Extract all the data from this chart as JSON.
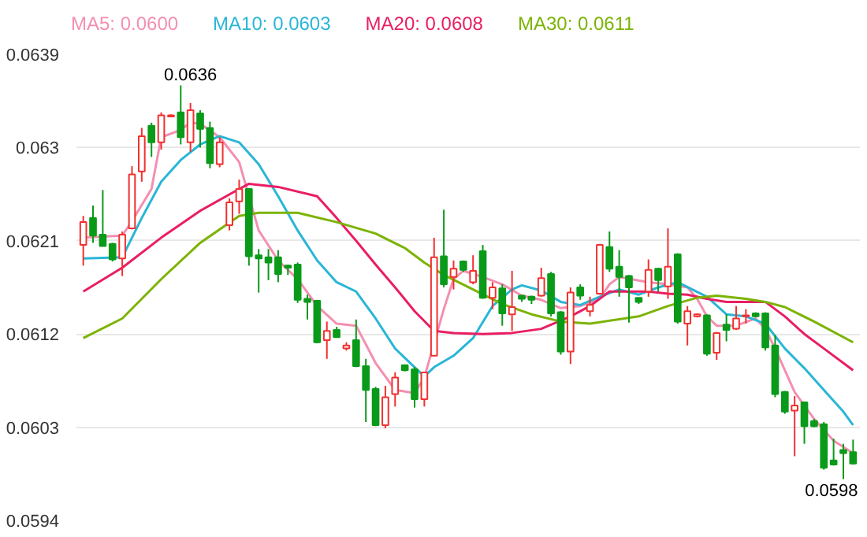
{
  "chart_data": {
    "type": "candlestick",
    "categories": [
      null,
      null,
      null,
      null,
      null,
      null,
      null,
      null,
      null,
      null,
      null,
      null,
      null,
      null,
      null,
      null,
      null,
      null,
      null,
      null,
      null,
      null,
      null,
      null,
      null,
      null,
      null,
      null,
      null,
      null,
      null,
      null,
      null,
      null,
      null,
      null,
      null,
      null,
      null,
      null,
      null,
      null,
      null,
      null,
      null,
      null,
      null,
      null,
      null,
      null,
      null,
      null,
      null,
      null,
      null,
      null,
      null,
      null,
      null,
      null,
      null,
      null,
      null,
      null,
      null,
      null,
      null,
      null,
      null,
      null,
      null,
      null,
      null,
      null,
      null,
      null,
      null,
      null,
      null,
      null
    ],
    "ohlc": [
      [
        0.06206,
        0.06234,
        0.06186,
        0.06228
      ],
      [
        0.06232,
        0.06244,
        0.06208,
        0.06215
      ],
      [
        0.06216,
        0.06259,
        0.06205,
        0.06205
      ],
      [
        0.06207,
        0.06208,
        0.0619,
        0.06192
      ],
      [
        0.06193,
        0.06219,
        0.06176,
        0.06216
      ],
      [
        0.06222,
        0.06282,
        0.06221,
        0.06274
      ],
      [
        0.06277,
        0.06319,
        0.06267,
        0.06311
      ],
      [
        0.06321,
        0.06324,
        0.06291,
        0.06305
      ],
      [
        0.06305,
        0.06334,
        0.06298,
        0.06331
      ],
      [
        0.0633,
        0.06332,
        0.0633,
        0.06331
      ],
      [
        0.06334,
        0.0636,
        0.06303,
        0.0631
      ],
      [
        0.06305,
        0.06343,
        0.06296,
        0.06336
      ],
      [
        0.06333,
        0.06336,
        0.063,
        0.06318
      ],
      [
        0.06319,
        0.06325,
        0.0628,
        0.06285
      ],
      [
        0.06284,
        0.0631,
        0.06281,
        0.06305
      ],
      [
        0.06225,
        0.06251,
        0.0622,
        0.06247
      ],
      [
        0.06248,
        0.06269,
        0.06236,
        0.0626
      ],
      [
        0.0626,
        0.0626,
        0.06186,
        0.06195
      ],
      [
        0.06196,
        0.06202,
        0.0616,
        0.06193
      ],
      [
        0.06194,
        0.06202,
        0.06172,
        0.06189
      ],
      [
        0.06194,
        0.06201,
        0.0617,
        0.06178
      ],
      [
        0.06186,
        0.06187,
        0.06177,
        0.06184
      ],
      [
        0.06187,
        0.06189,
        0.0615,
        0.06153
      ],
      [
        0.06154,
        0.06158,
        0.06134,
        0.06151
      ],
      [
        0.06152,
        0.06153,
        0.06111,
        0.06112
      ],
      [
        0.06114,
        0.06132,
        0.06096,
        0.06123
      ],
      [
        0.06124,
        0.06127,
        0.06117,
        0.06117
      ],
      [
        0.06106,
        0.06112,
        0.06104,
        0.06109
      ],
      [
        0.06114,
        0.06134,
        0.06088,
        0.06089
      ],
      [
        0.06089,
        0.06096,
        0.06035,
        0.06066
      ],
      [
        0.06067,
        0.06069,
        0.06031,
        0.06032
      ],
      [
        0.06032,
        0.0607,
        0.06029,
        0.06059
      ],
      [
        0.06062,
        0.06083,
        0.0605,
        0.06078
      ],
      [
        0.0609,
        0.0609,
        0.06084,
        0.06085
      ],
      [
        0.06086,
        0.06088,
        0.06049,
        0.06057
      ],
      [
        0.06057,
        0.06083,
        0.0605,
        0.06083
      ],
      [
        0.06099,
        0.06213,
        0.06099,
        0.06194
      ],
      [
        0.06195,
        0.0624,
        0.06165,
        0.06168
      ],
      [
        0.06175,
        0.06191,
        0.06163,
        0.06183
      ],
      [
        0.0619,
        0.06191,
        0.0618,
        0.06182
      ],
      [
        0.0617,
        0.06196,
        0.06168,
        0.06181
      ],
      [
        0.062,
        0.06206,
        0.06154,
        0.06155
      ],
      [
        0.06155,
        0.0617,
        0.06144,
        0.06165
      ],
      [
        0.06164,
        0.06168,
        0.06128,
        0.0614
      ],
      [
        0.06139,
        0.06181,
        0.06123,
        0.06146
      ],
      [
        0.06157,
        0.06158,
        0.06151,
        0.06154
      ],
      [
        0.06156,
        0.06157,
        0.06149,
        0.06153
      ],
      [
        0.06157,
        0.06184,
        0.06156,
        0.06174
      ],
      [
        0.06178,
        0.0618,
        0.06137,
        0.0614
      ],
      [
        0.06141,
        0.06142,
        0.061,
        0.06103
      ],
      [
        0.06103,
        0.06165,
        0.06091,
        0.0616
      ],
      [
        0.06165,
        0.06168,
        0.06153,
        0.06157
      ],
      [
        0.06142,
        0.06156,
        0.06137,
        0.06148
      ],
      [
        0.06159,
        0.06207,
        0.06158,
        0.06206
      ],
      [
        0.06204,
        0.06219,
        0.0618,
        0.06183
      ],
      [
        0.06185,
        0.06201,
        0.06156,
        0.06175
      ],
      [
        0.06176,
        0.06177,
        0.06131,
        0.06165
      ],
      [
        0.06155,
        0.06155,
        0.06149,
        0.06151
      ],
      [
        0.06161,
        0.06192,
        0.06156,
        0.06182
      ],
      [
        0.06183,
        0.06184,
        0.06161,
        0.06172
      ],
      [
        0.06166,
        0.06222,
        0.06154,
        0.06185
      ],
      [
        0.06197,
        0.06198,
        0.0613,
        0.06132
      ],
      [
        0.0613,
        0.06147,
        0.06109,
        0.06142
      ],
      [
        0.06137,
        0.0614,
        0.06136,
        0.06139
      ],
      [
        0.06138,
        0.06139,
        0.06099,
        0.06101
      ],
      [
        0.06102,
        0.06122,
        0.06095,
        0.06121
      ],
      [
        0.06129,
        0.06139,
        0.06113,
        0.06124
      ],
      [
        0.06125,
        0.06147,
        0.06124,
        0.06135
      ],
      [
        0.06137,
        0.06144,
        0.0613,
        0.06138
      ],
      [
        0.0614,
        0.06141,
        0.06136,
        0.06137
      ],
      [
        0.0614,
        0.06141,
        0.06104,
        0.06107
      ],
      [
        0.06109,
        0.06119,
        0.06059,
        0.06062
      ],
      [
        0.06064,
        0.06065,
        0.06043,
        0.06045
      ],
      [
        0.06046,
        0.0606,
        0.06002,
        0.06051
      ],
      [
        0.06054,
        0.06055,
        0.06014,
        0.06031
      ],
      [
        0.06036,
        0.06038,
        0.0603,
        0.06031
      ],
      [
        0.06033,
        0.06035,
        0.05989,
        0.05991
      ],
      [
        0.05998,
        0.06019,
        0.05993,
        0.05994
      ],
      [
        0.06008,
        0.06014,
        0.0598,
        0.06005
      ],
      [
        0.06006,
        0.06018,
        0.05994,
        0.05995
      ]
    ],
    "series": [
      {
        "name": "MA5: 0.0600",
        "type": "line",
        "color": "#f48fb1",
        "values": [
          0.06213,
          null,
          null,
          null,
          0.06215,
          0.06229,
          null,
          0.0626,
          0.0631,
          null,
          0.06317,
          0.06324,
          0.06323,
          null,
          0.0631,
          null,
          0.06286,
          null,
          0.0622,
          null,
          0.06191,
          null,
          0.06173,
          null,
          0.06147,
          null,
          0.0613,
          null,
          0.06128,
          null,
          0.06092,
          null,
          0.06066,
          null,
          0.06063,
          0.06078,
          0.06111,
          0.06144,
          0.06173,
          0.06181,
          null,
          0.06175,
          null,
          0.06168,
          null,
          0.06157,
          null,
          0.06153,
          null,
          0.06145,
          null,
          0.06147,
          null,
          0.06154,
          0.06168,
          0.06175,
          null,
          null,
          0.0617,
          null,
          0.06168,
          null,
          0.06165,
          0.06154,
          0.06137,
          0.06128,
          null,
          0.06128,
          null,
          0.06135,
          0.06125,
          0.06106,
          null,
          0.06064,
          null,
          0.06038,
          null,
          0.06017,
          null,
          0.06005
        ]
      },
      {
        "name": "MA10: 0.0603",
        "type": "line",
        "color": "#29b6d6",
        "values": [
          0.06193,
          null,
          null,
          null,
          0.06194,
          null,
          0.06232,
          null,
          0.06267,
          null,
          0.06288,
          null,
          0.06303,
          null,
          0.06311,
          null,
          0.06305,
          null,
          0.06284,
          null,
          0.06253,
          null,
          0.0622,
          null,
          0.06191,
          null,
          0.0617,
          null,
          0.06161,
          null,
          0.06135,
          null,
          0.06106,
          null,
          0.06088,
          0.06079,
          0.06088,
          null,
          0.06099,
          null,
          0.06116,
          null,
          0.06147,
          null,
          0.06163,
          0.06167,
          null,
          0.06162,
          null,
          0.06151,
          null,
          0.06148,
          null,
          0.06156,
          null,
          0.06163,
          null,
          0.06158,
          null,
          0.06165,
          null,
          0.0617,
          null,
          null,
          0.06156,
          null,
          0.06139,
          null,
          0.06137,
          null,
          0.0613,
          null,
          0.06106,
          null,
          0.06087,
          null,
          0.06066,
          null,
          0.06045,
          0.06032
        ]
      },
      {
        "name": "MA20: 0.0608",
        "type": "line",
        "color": "#e91e63",
        "values": [
          0.06161,
          null,
          null,
          null,
          0.06184,
          null,
          null,
          null,
          0.06213,
          null,
          null,
          null,
          0.06239,
          null,
          null,
          null,
          0.0626,
          0.06265,
          null,
          null,
          0.06262,
          null,
          null,
          null,
          0.06253,
          null,
          0.06232,
          null,
          0.0621,
          null,
          0.06187,
          null,
          0.06165,
          null,
          0.06142,
          null,
          0.06123,
          null,
          0.06121,
          null,
          null,
          0.0612,
          null,
          null,
          0.06121,
          null,
          null,
          0.06125,
          null,
          null,
          0.06137,
          null,
          0.06147,
          null,
          0.06161,
          null,
          0.06161,
          null,
          0.06161,
          null,
          0.06159,
          null,
          0.06158,
          null,
          0.06154,
          null,
          0.06151,
          null,
          0.06151,
          null,
          0.06151,
          null,
          0.06137,
          null,
          0.0612,
          null,
          0.06106,
          null,
          null,
          0.06085
        ]
      },
      {
        "name": "MA30: 0.0611",
        "type": "line",
        "color": "#7cb305",
        "values": [
          0.06116,
          null,
          null,
          null,
          0.06135,
          null,
          null,
          null,
          0.06173,
          null,
          null,
          null,
          0.06208,
          null,
          null,
          null,
          0.06234,
          null,
          0.06237,
          null,
          null,
          null,
          0.06237,
          null,
          null,
          null,
          0.06228,
          null,
          null,
          null,
          0.06217,
          null,
          null,
          0.06203,
          null,
          0.06189,
          null,
          0.06177,
          null,
          null,
          0.06163,
          null,
          null,
          0.06149,
          null,
          null,
          0.06139,
          null,
          null,
          0.06132,
          null,
          null,
          0.0613,
          null,
          null,
          null,
          null,
          0.06137,
          null,
          null,
          0.06147,
          null,
          null,
          0.06155,
          null,
          0.06157,
          null,
          null,
          0.06154,
          null,
          0.06151,
          null,
          0.06146,
          null,
          null,
          0.06132,
          null,
          null,
          null,
          0.06112
        ]
      }
    ],
    "ylim": [
      0.0594,
      0.0639
    ],
    "yticks": [
      {
        "value": 0.0594,
        "label": "0.0594"
      },
      {
        "value": 0.0603,
        "label": "0.0603"
      },
      {
        "value": 0.0612,
        "label": "0.0612"
      },
      {
        "value": 0.0621,
        "label": "0.0621"
      },
      {
        "value": 0.063,
        "label": "0.063"
      },
      {
        "value": 0.0639,
        "label": "0.0639"
      }
    ],
    "tick_labels": "y",
    "grid": "y",
    "annotations": [
      "0.0636",
      "0.0598"
    ]
  }
}
